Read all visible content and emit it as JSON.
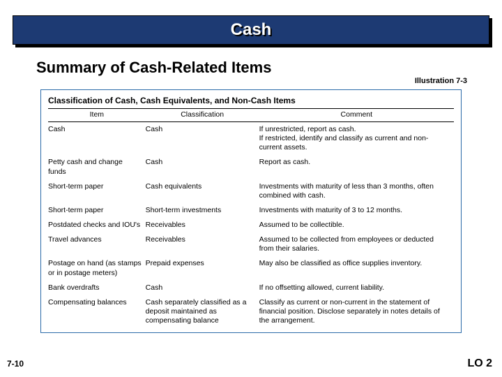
{
  "banner": {
    "title": "Cash"
  },
  "subtitle": "Summary of Cash-Related Items",
  "illustration_label": "Illustration 7-3",
  "table": {
    "title": "Classification of Cash, Cash Equivalents, and Non-Cash Items",
    "columns": [
      "Item",
      "Classification",
      "Comment"
    ],
    "rows": [
      [
        "Cash",
        "Cash",
        "If unrestricted, report as cash.\nIf restricted, identify and classify as current and non-current assets."
      ],
      [
        "Petty cash and change funds",
        "Cash",
        "Report as cash."
      ],
      [
        "Short-term paper",
        "Cash equivalents",
        "Investments with maturity of less than 3 months, often combined with cash."
      ],
      [
        "Short-term paper",
        "Short-term investments",
        "Investments with maturity of 3 to 12 months."
      ],
      [
        "Postdated checks and IOU's",
        "Receivables",
        "Assumed to be collectible."
      ],
      [
        "Travel advances",
        "Receivables",
        "Assumed to be collected from employees or deducted from their salaries."
      ],
      [
        "Postage on hand (as stamps or in postage meters)",
        "Prepaid expenses",
        "May also be classified as office supplies inventory."
      ],
      [
        "Bank overdrafts",
        "Cash",
        "If no offsetting allowed, current liability."
      ],
      [
        "Compensating balances",
        "Cash separately classified as a deposit maintained as compensating balance",
        "Classify as current or non-current in the statement of financial position. Disclose separately in notes details of the arrangement."
      ]
    ]
  },
  "page_number": "7-10",
  "lo": "LO 2",
  "colors": {
    "banner_bg": "#1d3a73",
    "table_border": "#2a6aa8"
  }
}
